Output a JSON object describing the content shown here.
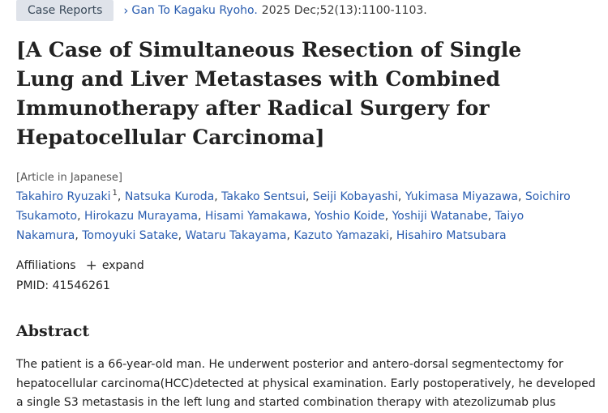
{
  "header": {
    "badge": "Case Reports",
    "journal": "Gan To Kagaku Ryoho.",
    "citation": "2025 Dec;52(13):1100-1103."
  },
  "title": "[A Case of Simultaneous Resection of Single Lung and Liver Metastases with Combined Immunotherapy after Radical Surgery for Hepatocellular Carcinoma]",
  "language_note": "[Article in Japanese]",
  "authors": [
    {
      "name": "Takahiro Ryuzaki",
      "sup": "1"
    },
    {
      "name": "Natsuka Kuroda"
    },
    {
      "name": "Takako Sentsui"
    },
    {
      "name": "Seiji Kobayashi"
    },
    {
      "name": "Yukimasa Miyazawa"
    },
    {
      "name": "Soichiro Tsukamoto"
    },
    {
      "name": "Hirokazu Murayama"
    },
    {
      "name": "Hisami Yamakawa"
    },
    {
      "name": "Yoshio Koide"
    },
    {
      "name": "Yoshiji Watanabe"
    },
    {
      "name": "Taiyo Nakamura"
    },
    {
      "name": "Tomoyuki Satake"
    },
    {
      "name": "Wataru Takayama"
    },
    {
      "name": "Kazuto Yamazaki"
    },
    {
      "name": "Hisahiro Matsubara"
    }
  ],
  "affiliations": {
    "label": "Affiliations",
    "expand": "expand",
    "icon": "plus-icon"
  },
  "pmid": "PMID: 41546261",
  "abstract": {
    "heading": "Abstract",
    "text": "The patient is a 66-year-old man. He underwent posterior and antero-dorsal segmentectomy for hepatocellular carcinoma(HCC)detected at physical examination. Early postoperatively, he developed a single S3 metastasis in the left lung and started combination therapy with atezolizumab plus"
  },
  "colors": {
    "link": "#2a5db0",
    "badge_bg": "#dfe3ea"
  }
}
